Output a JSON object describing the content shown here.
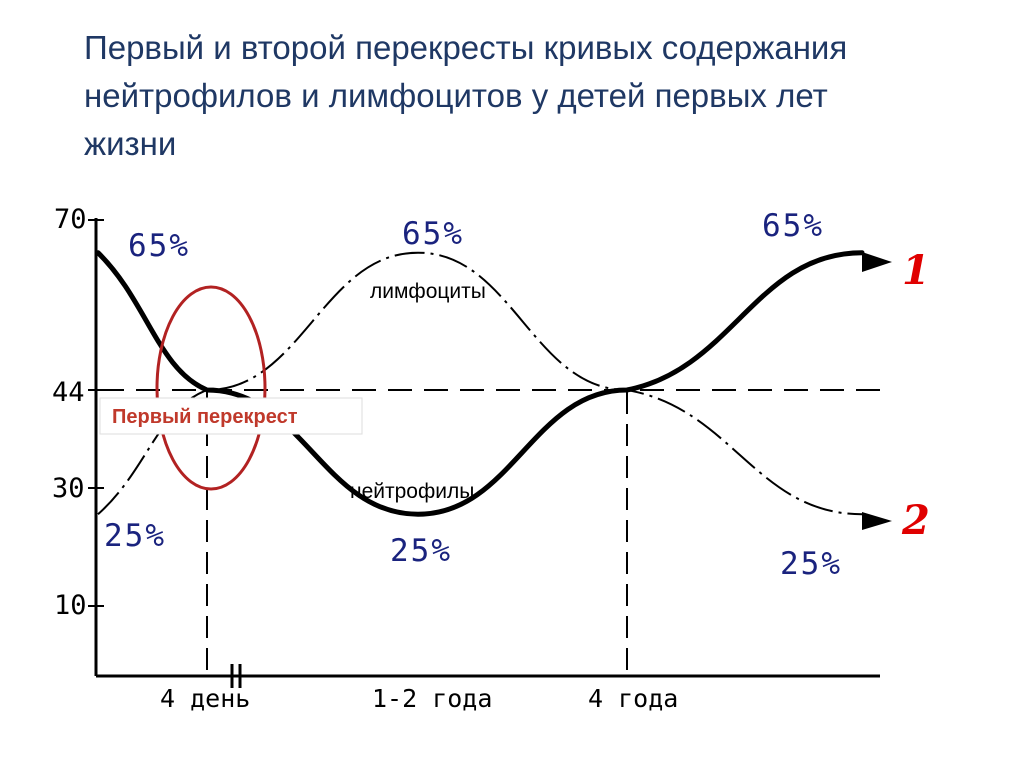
{
  "title": {
    "line1": "Первый и второй перекресты кривых содержания",
    "line2": "нейтрофилов и лимфоцитов у детей первых лет",
    "line3": "жизни"
  },
  "chart_data": {
    "type": "line",
    "y_ticks": [
      "70",
      "44",
      "30",
      "10"
    ],
    "x_ticks": [
      "4 день",
      "1-2 года",
      "4 года"
    ],
    "series": [
      {
        "name": "нейтрофилы",
        "number": "1",
        "style": "solid",
        "color": "#000000",
        "points": [
          [
            0,
            65
          ],
          [
            1,
            44
          ],
          [
            2,
            25
          ],
          [
            3,
            44
          ],
          [
            4,
            65
          ]
        ]
      },
      {
        "name": "лимфоциты",
        "number": "2",
        "style": "dash-dot",
        "color": "#000000",
        "points": [
          [
            0,
            25
          ],
          [
            1,
            44
          ],
          [
            2,
            65
          ],
          [
            3,
            44
          ],
          [
            4,
            25
          ]
        ]
      }
    ],
    "reference_line": {
      "y": 44,
      "style": "dashed"
    },
    "annotations": {
      "pct_lymph_start": "25%",
      "pct_neut_start": "65%",
      "pct_lymph_peak": "65%",
      "pct_neut_trough": "25%",
      "pct_neut_end": "65%",
      "pct_lymph_end": "25%",
      "callout": "Первый перекрест",
      "callout_color": "#c0392b"
    }
  }
}
